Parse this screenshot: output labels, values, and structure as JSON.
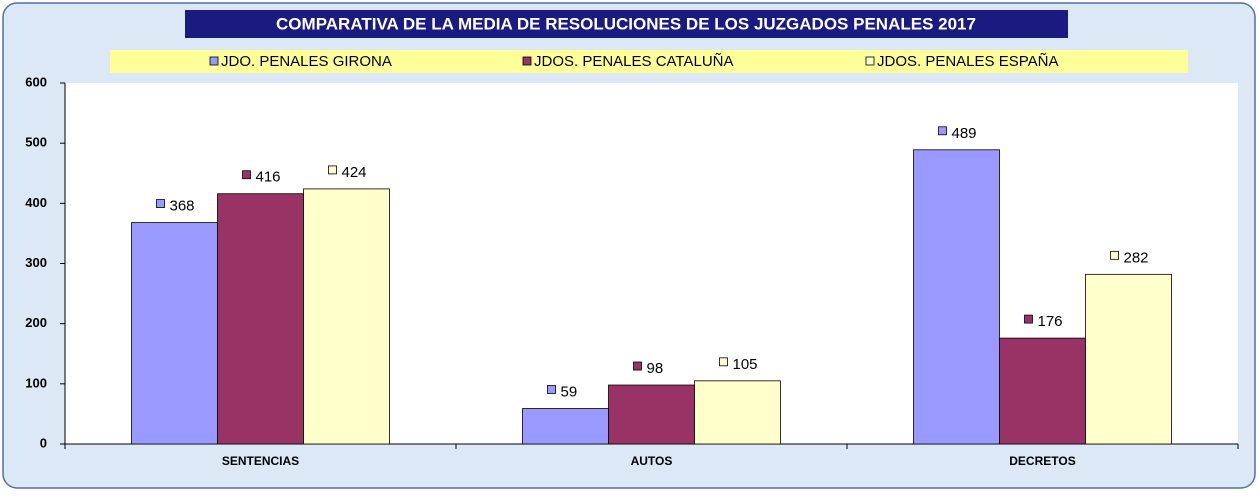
{
  "chart_data": {
    "type": "bar",
    "title": "COMPARATIVA DE LA MEDIA DE RESOLUCIONES  DE LOS JUZGADOS PENALES 2017",
    "categories": [
      "SENTENCIAS",
      "AUTOS",
      "DECRETOS"
    ],
    "series": [
      {
        "name": "JDO. PENALES  GIRONA",
        "color": "#9999ff",
        "values": [
          368,
          59,
          489
        ]
      },
      {
        "name": "JDOS. PENALES CATALUÑA",
        "color": "#993366",
        "values": [
          416,
          98,
          176
        ]
      },
      {
        "name": "JDOS. PENALES  ESPAÑA",
        "color": "#ffffcc",
        "values": [
          424,
          105,
          282
        ]
      }
    ],
    "ylim": [
      0,
      600
    ],
    "yticks": [
      0,
      100,
      200,
      300,
      400,
      500,
      600
    ],
    "grid": false,
    "legend": "top"
  }
}
